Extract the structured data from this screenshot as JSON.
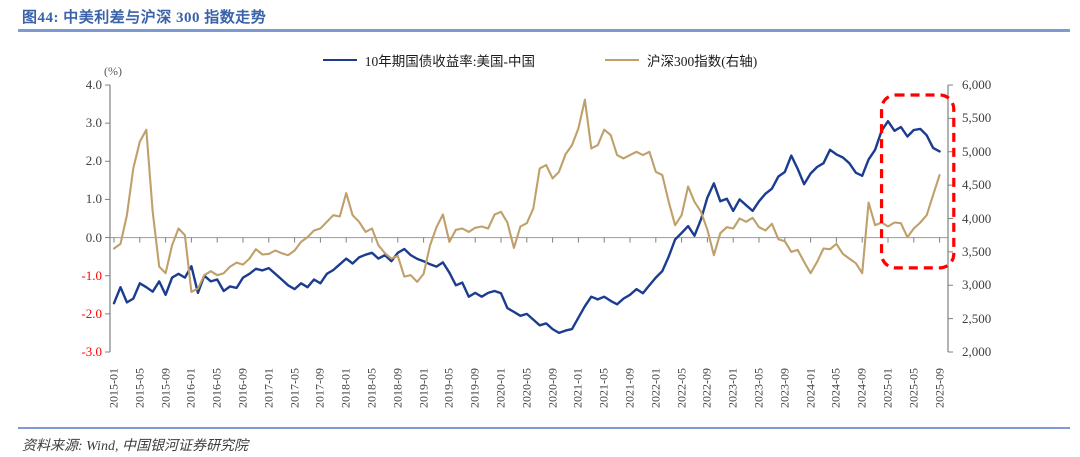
{
  "figure": {
    "title": "图44: 中美利差与沪深 300 指数走势",
    "source": "资料来源: Wind, 中国银河证券研究院",
    "accent_rule_color": "#7d9bd1",
    "title_color": "#3a62a8"
  },
  "legend": [
    {
      "label": "10年期国债收益率:美国-中国",
      "color": "#1b3c8f"
    },
    {
      "label": "沪深300指数(右轴)",
      "color": "#bfa06b"
    }
  ],
  "chart_data": {
    "type": "line",
    "title": "中美利差与沪深300指数走势",
    "grid": "off",
    "legend_position": "top-center",
    "x_start": "2015-01",
    "x_end": "2025-09",
    "x_frequency": "monthly",
    "x_tick_labels": [
      "2015-01",
      "2015-05",
      "2015-09",
      "2016-01",
      "2016-05",
      "2016-09",
      "2017-01",
      "2017-05",
      "2017-09",
      "2018-01",
      "2018-05",
      "2018-09",
      "2019-01",
      "2019-05",
      "2019-09",
      "2020-01",
      "2020-05",
      "2020-09",
      "2021-01",
      "2021-05",
      "2021-09",
      "2022-01",
      "2022-05",
      "2022-09",
      "2023-01",
      "2023-05",
      "2023-09",
      "2024-01",
      "2024-05",
      "2024-09",
      "2025-01",
      "2025-05",
      "2025-09"
    ],
    "left_axis": {
      "unit_label": "(%)",
      "min": -3.0,
      "max": 4.0,
      "tick_labels": [
        "4.0",
        "3.0",
        "2.0",
        "1.0",
        "0.0",
        "-1.0",
        "-2.0",
        "-3.0"
      ],
      "negative_tick_color": "#ff0000",
      "tick_color": "#404040"
    },
    "right_axis": {
      "min": 2000,
      "max": 6000,
      "tick_labels": [
        "6,000",
        "5,500",
        "5,000",
        "4,500",
        "4,000",
        "3,500",
        "3,000",
        "2,500",
        "2,000"
      ]
    },
    "series": [
      {
        "name": "10年期国债收益率:美国-中国",
        "axis": "left",
        "color": "#1b3c8f",
        "values": [
          -1.72,
          -1.3,
          -1.7,
          -1.6,
          -1.2,
          -1.3,
          -1.42,
          -1.15,
          -1.5,
          -1.05,
          -0.95,
          -1.05,
          -0.75,
          -1.45,
          -1.0,
          -1.15,
          -1.1,
          -1.4,
          -1.28,
          -1.32,
          -1.05,
          -0.95,
          -0.82,
          -0.86,
          -0.8,
          -0.95,
          -1.1,
          -1.25,
          -1.35,
          -1.2,
          -1.3,
          -1.1,
          -1.2,
          -0.95,
          -0.85,
          -0.7,
          -0.55,
          -0.68,
          -0.52,
          -0.45,
          -0.4,
          -0.55,
          -0.46,
          -0.62,
          -0.4,
          -0.3,
          -0.46,
          -0.56,
          -0.62,
          -0.7,
          -0.76,
          -0.65,
          -0.92,
          -1.25,
          -1.18,
          -1.55,
          -1.45,
          -1.55,
          -1.45,
          -1.4,
          -1.46,
          -1.85,
          -1.95,
          -2.05,
          -2.0,
          -2.15,
          -2.3,
          -2.25,
          -2.4,
          -2.5,
          -2.44,
          -2.4,
          -2.1,
          -1.8,
          -1.55,
          -1.62,
          -1.55,
          -1.66,
          -1.75,
          -1.6,
          -1.5,
          -1.35,
          -1.46,
          -1.25,
          -1.05,
          -0.88,
          -0.5,
          -0.05,
          0.12,
          0.3,
          0.05,
          0.48,
          1.05,
          1.42,
          0.95,
          1.02,
          0.7,
          1.0,
          0.85,
          0.7,
          0.95,
          1.15,
          1.28,
          1.6,
          1.72,
          2.15,
          1.8,
          1.4,
          1.68,
          1.85,
          1.95,
          2.3,
          2.18,
          2.1,
          1.95,
          1.7,
          1.62,
          2.05,
          2.3,
          2.8,
          3.05,
          2.8,
          2.9,
          2.65,
          2.82,
          2.85,
          2.68,
          2.35,
          2.26
        ]
      },
      {
        "name": "沪深300指数(右轴)",
        "axis": "right",
        "color": "#bfa06b",
        "values": [
          3550,
          3620,
          4050,
          4750,
          5150,
          5330,
          4100,
          3280,
          3180,
          3600,
          3850,
          3750,
          2900,
          2950,
          3150,
          3210,
          3150,
          3180,
          3280,
          3340,
          3310,
          3400,
          3540,
          3460,
          3470,
          3520,
          3480,
          3450,
          3520,
          3650,
          3720,
          3820,
          3850,
          3950,
          4050,
          4030,
          4380,
          4050,
          3950,
          3800,
          3850,
          3600,
          3480,
          3400,
          3440,
          3130,
          3150,
          3050,
          3170,
          3600,
          3870,
          4060,
          3650,
          3830,
          3850,
          3800,
          3860,
          3880,
          3850,
          4060,
          4100,
          3940,
          3560,
          3880,
          3930,
          4150,
          4750,
          4800,
          4600,
          4700,
          4960,
          5100,
          5350,
          5780,
          5050,
          5100,
          5330,
          5250,
          4950,
          4900,
          4950,
          5000,
          4950,
          5000,
          4700,
          4650,
          4250,
          3900,
          4050,
          4480,
          4250,
          4100,
          3830,
          3450,
          3780,
          3870,
          3850,
          4000,
          3950,
          4010,
          3870,
          3820,
          3920,
          3690,
          3660,
          3500,
          3530,
          3350,
          3180,
          3350,
          3550,
          3540,
          3620,
          3470,
          3400,
          3330,
          3180,
          4240,
          3900,
          3940,
          3880,
          3940,
          3930,
          3720,
          3850,
          3940,
          4050,
          4350,
          4650
        ]
      }
    ],
    "annotation": {
      "type": "dashed-rounded-rect",
      "color": "#ff0000",
      "x_month_range": [
        119,
        130.2
      ],
      "y_right_range": [
        3260,
        5850
      ],
      "note": "highlights 2025-01 to 2025-09 period"
    }
  }
}
